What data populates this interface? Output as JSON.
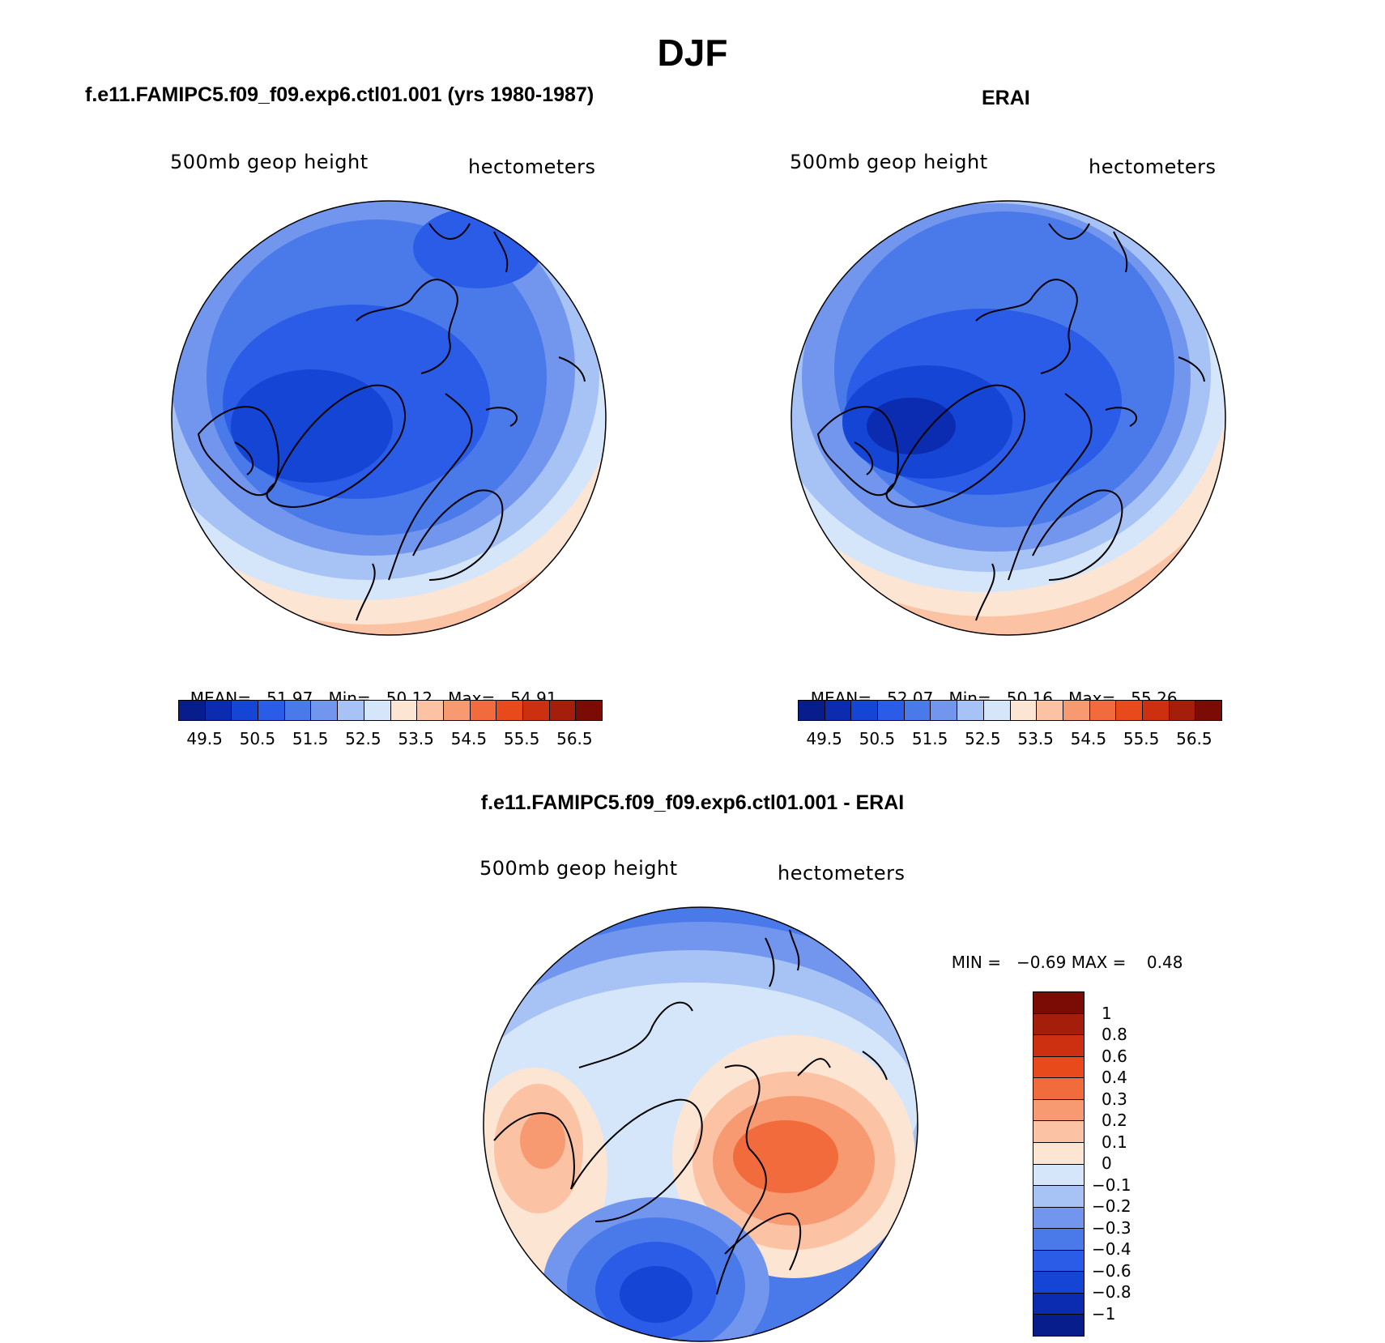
{
  "figure": {
    "title": "DJF"
  },
  "colors": {
    "sequential": [
      "#081d8c",
      "#0b2cb0",
      "#1445d4",
      "#2a5ce8",
      "#4a7aea",
      "#7296ee",
      "#a7c2f5",
      "#d6e6fa",
      "#fde5d3",
      "#fbc2a3",
      "#f79a72",
      "#f26b3c",
      "#e84a1c",
      "#cc3010",
      "#a51e0b",
      "#7a0b05"
    ],
    "diverging": [
      "#081d8c",
      "#0b2cb0",
      "#1445d4",
      "#2a5ce8",
      "#4a7aea",
      "#7296ee",
      "#a7c2f5",
      "#d6e6fa",
      "#fde5d3",
      "#fbc2a3",
      "#f79a72",
      "#f26b3c",
      "#e84a1c",
      "#cc3010",
      "#a51e0b",
      "#7a0b05"
    ]
  },
  "panels": [
    {
      "title": "f.e11.FAMIPC5.f09_f09.exp6.ctl01.001 (yrs 1980-1987)",
      "variable": "500mb geop height",
      "units": "hectometers",
      "stats": {
        "mean_label": "MEAN=",
        "mean": "51.97",
        "min_label": "Min=",
        "min": "50.12",
        "max_label": "Max=",
        "max": "54.91"
      },
      "colorbar_ticks": [
        "49.5",
        "50.5",
        "51.5",
        "52.5",
        "53.5",
        "54.5",
        "55.5",
        "56.5"
      ]
    },
    {
      "title": "ERAI",
      "variable": "500mb geop height",
      "units": "hectometers",
      "stats": {
        "mean_label": "MEAN=",
        "mean": "52.07",
        "min_label": "Min=",
        "min": "50.16",
        "max_label": "Max=",
        "max": "55.26"
      },
      "colorbar_ticks": [
        "49.5",
        "50.5",
        "51.5",
        "52.5",
        "53.5",
        "54.5",
        "55.5",
        "56.5"
      ]
    },
    {
      "title": "f.e11.FAMIPC5.f09_f09.exp6.ctl01.001 - ERAI",
      "variable": "500mb geop height",
      "units": "hectometers",
      "stats": {
        "min_label": "MIN =",
        "min": "−0.69",
        "max_label": "MAX =",
        "max": "0.48"
      },
      "colorbar_ticks": [
        "1",
        "0.8",
        "0.6",
        "0.4",
        "0.3",
        "0.2",
        "0.1",
        "0",
        "−0.1",
        "−0.2",
        "−0.3",
        "−0.4",
        "−0.6",
        "−0.8",
        "−1"
      ]
    }
  ]
}
